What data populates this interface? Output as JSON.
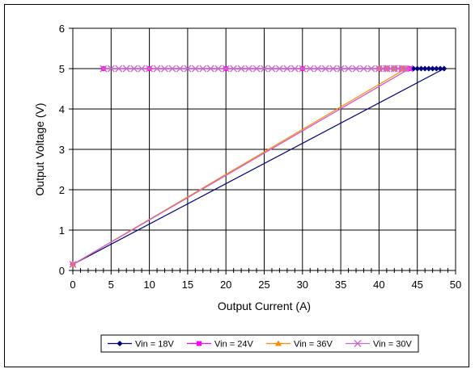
{
  "chart_data": {
    "type": "line",
    "title": "",
    "xlabel": "Output Current (A)",
    "ylabel": "Output Voltage (V)",
    "xlim": [
      0,
      50
    ],
    "ylim": [
      0,
      6
    ],
    "x_ticks": [
      "0",
      "5",
      "10",
      "15",
      "20",
      "25",
      "30",
      "35",
      "40",
      "45",
      "50"
    ],
    "y_ticks": [
      "0",
      "1",
      "2",
      "3",
      "4",
      "5",
      "6"
    ],
    "grid": true,
    "legend_position": "bottom",
    "series": [
      {
        "name": "Vin = 18V",
        "color": "#000080",
        "marker": "diamond",
        "x": [
          4,
          10,
          20,
          30,
          40,
          44.5,
          45,
          45.5,
          46,
          46.5,
          47,
          47.5,
          48,
          48.5,
          0
        ],
        "y": [
          5.0,
          5.0,
          5.0,
          5.0,
          5.0,
          5.0,
          5.0,
          5.0,
          5.0,
          5.0,
          5.0,
          5.0,
          5.0,
          5.0,
          0.15
        ]
      },
      {
        "name": "Vin = 24V",
        "color": "#ff00ff",
        "marker": "square",
        "x": [
          4,
          10,
          20,
          30,
          40,
          41,
          42,
          43,
          44,
          0
        ],
        "y": [
          5.0,
          5.0,
          5.0,
          5.0,
          5.0,
          5.0,
          5.0,
          5.0,
          5.0,
          0.15
        ]
      },
      {
        "name": "Vin = 36V",
        "color": "#ff8c00",
        "marker": "triangle",
        "x": [
          40,
          41,
          42,
          43,
          43.5,
          0
        ],
        "y": [
          5.0,
          5.0,
          5.0,
          5.0,
          5.0,
          0.15
        ]
      },
      {
        "name": "Vin = 30V",
        "color": "#cc66cc",
        "marker": "x",
        "x": [
          4,
          5,
          6,
          7,
          8,
          9,
          10,
          11,
          12,
          13,
          14,
          15,
          16,
          17,
          18,
          19,
          20,
          21,
          22,
          23,
          24,
          25,
          26,
          27,
          28,
          29,
          30,
          31,
          32,
          33,
          34,
          35,
          36,
          37,
          38,
          39,
          40,
          40.5,
          41,
          41.5,
          42,
          42.5,
          43,
          43.5,
          44,
          0
        ],
        "y": [
          5.0,
          5.0,
          5.0,
          5.0,
          5.0,
          5.0,
          5.0,
          5.0,
          5.0,
          5.0,
          5.0,
          5.0,
          5.0,
          5.0,
          5.0,
          5.0,
          5.0,
          5.0,
          5.0,
          5.0,
          5.0,
          5.0,
          5.0,
          5.0,
          5.0,
          5.0,
          5.0,
          5.0,
          5.0,
          5.0,
          5.0,
          5.0,
          5.0,
          5.0,
          5.0,
          5.0,
          5.0,
          5.0,
          5.0,
          5.0,
          5.0,
          5.0,
          5.0,
          5.0,
          5.0,
          0.15
        ]
      }
    ]
  }
}
